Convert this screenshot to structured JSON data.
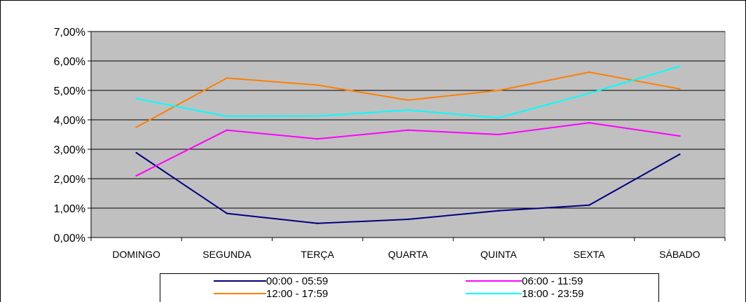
{
  "chart_data": {
    "type": "line",
    "title": "",
    "xlabel": "",
    "ylabel": "",
    "categories": [
      "DOMINGO",
      "SEGUNDA",
      "TERÇA",
      "QUARTA",
      "QUINTA",
      "SEXTA",
      "SÁBADO"
    ],
    "ylim": [
      0,
      7
    ],
    "yticks": [
      0,
      1,
      2,
      3,
      4,
      5,
      6,
      7
    ],
    "ytick_labels": [
      "0,00%",
      "1,00%",
      "2,00%",
      "3,00%",
      "4,00%",
      "5,00%",
      "6,00%",
      "7,00%"
    ],
    "grid": true,
    "legend_position": "bottom",
    "plot_background": "#c0c0c0",
    "series": [
      {
        "name": "00:00 - 05:59",
        "color": "#000080",
        "values": [
          2.88,
          0.82,
          0.48,
          0.62,
          0.91,
          1.1,
          2.83
        ]
      },
      {
        "name": "06:00 - 11:59",
        "color": "#ff00ff",
        "values": [
          2.1,
          3.65,
          3.35,
          3.65,
          3.5,
          3.9,
          3.45
        ]
      },
      {
        "name": "12:00 - 17:59",
        "color": "#ff7f00",
        "values": [
          3.75,
          5.42,
          5.18,
          4.67,
          5.0,
          5.62,
          5.05
        ]
      },
      {
        "name": "18:00 - 23:59",
        "color": "#00ffff",
        "values": [
          4.72,
          4.12,
          4.13,
          4.33,
          4.07,
          4.9,
          5.82
        ]
      }
    ]
  }
}
